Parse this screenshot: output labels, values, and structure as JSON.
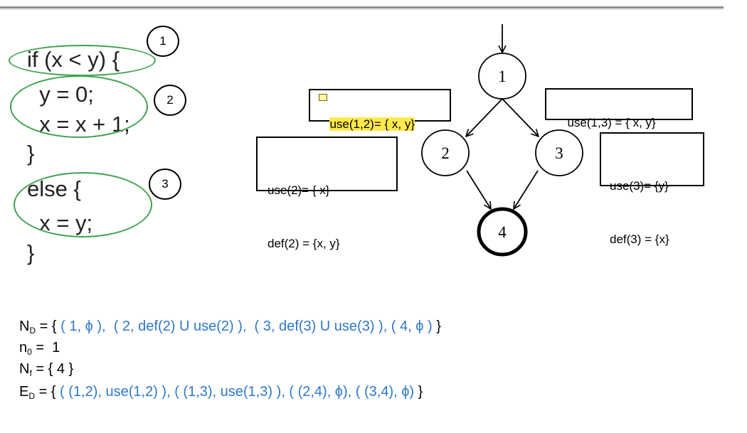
{
  "code_lines": {
    "l1": "if (x < y) {",
    "l2": "  y = 0;",
    "l3": "  x = x + 1;",
    "l4": "}",
    "l5": "else {",
    "l6": "  x = y;",
    "l7": "}"
  },
  "region_labels": {
    "r1": "1",
    "r2": "2",
    "r3": "3"
  },
  "graph_nodes": {
    "n1": "1",
    "n2": "2",
    "n3": "3",
    "n4": "4"
  },
  "boxes": {
    "use12": "use(1,2)= { x, y}",
    "use13": "use(1,3) = { x, y}",
    "use2": "use(2)= { x}",
    "def2": "def(2) = {x, y}",
    "use3": "use(3)= {y}",
    "def3": "def(3) = {x}"
  },
  "formulas": {
    "nd": {
      "sym": "N",
      "sub": "D",
      "eq": " = { ",
      "body": "( 1, ϕ ),  ( 2, def(2) U use(2) ),  ( 3, def(3) U use(3) ), ( 4, ϕ )",
      "end": " }"
    },
    "n0": {
      "sym": "n",
      "sub": "0",
      "eq": " =  1"
    },
    "nf": {
      "sym": "N",
      "sub": "f",
      "eq": " = { 4 }"
    },
    "ed": {
      "sym": "E",
      "sub": "D",
      "eq": " = { ",
      "body": "( (1,2), use(1,2) ), ( (1,3), use(1,3) ), ( (2,4), ϕ), ( (3,4), ϕ)",
      "end": " }"
    }
  },
  "colors": {
    "ring": "#3fa34d",
    "blue": "#2e78c7",
    "highlight": "#ffe94a"
  }
}
